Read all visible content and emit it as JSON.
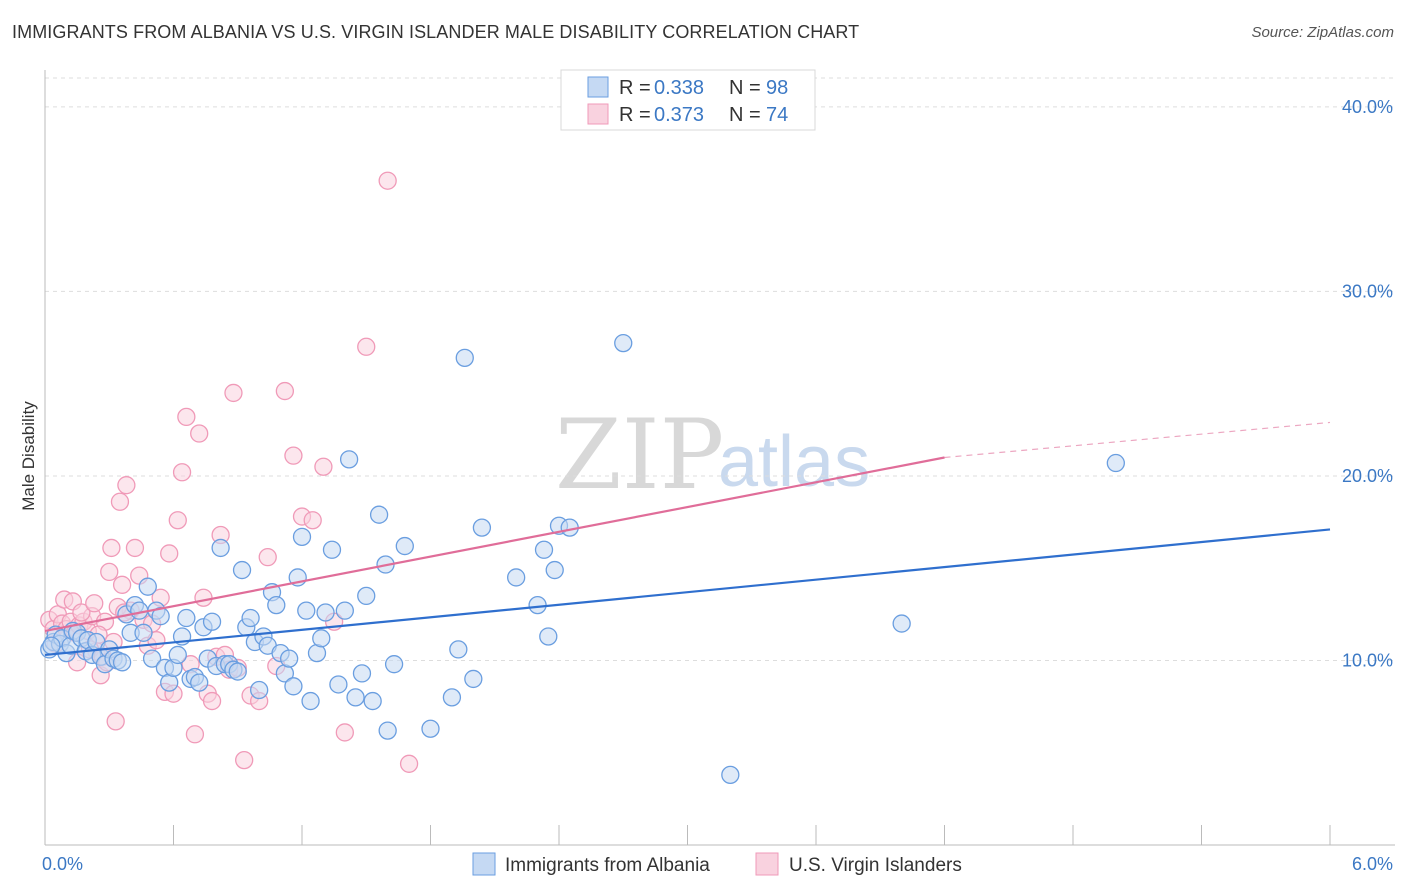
{
  "header": {
    "title": "IMMIGRANTS FROM ALBANIA VS U.S. VIRGIN ISLANDER MALE DISABILITY CORRELATION CHART",
    "source": "Source: ZipAtlas.com"
  },
  "watermark": {
    "zip": "ZIP",
    "atlas": "atlas"
  },
  "legend": {
    "items": [
      {
        "r_label": "R = ",
        "r_value": "0.338",
        "n_label": "N = ",
        "n_value": "98"
      },
      {
        "r_label": "R = ",
        "r_value": "0.373",
        "n_label": "N = ",
        "n_value": "74"
      }
    ]
  },
  "chart_data": {
    "type": "scatter",
    "ylabel": "Male Disability",
    "xlim": [
      0,
      6
    ],
    "ylim": [
      0,
      42
    ],
    "x_tick_labels": [
      {
        "value": 0,
        "label": "0.0%"
      },
      {
        "value": 6,
        "label": "6.0%"
      }
    ],
    "y_tick_labels": [
      {
        "value": 10,
        "label": "10.0%"
      },
      {
        "value": 20,
        "label": "20.0%"
      },
      {
        "value": 30,
        "label": "30.0%"
      },
      {
        "value": 40,
        "label": "40.0%"
      }
    ],
    "grid": true,
    "legend_position": "top-center",
    "series": [
      {
        "name": "Immigrants from Albania",
        "color": "#6a9ee0",
        "fill": "#c5d9f3",
        "line_color": "#2f6fce",
        "trend": {
          "x0": 0.0,
          "y0": 10.3,
          "x1": 6.0,
          "y1": 17.1
        },
        "points": [
          [
            0.02,
            10.6
          ],
          [
            0.04,
            11.0
          ],
          [
            0.05,
            11.4
          ],
          [
            0.07,
            10.9
          ],
          [
            0.08,
            11.2
          ],
          [
            0.1,
            10.4
          ],
          [
            0.12,
            10.8
          ],
          [
            0.13,
            11.6
          ],
          [
            0.15,
            11.5
          ],
          [
            0.17,
            11.2
          ],
          [
            0.19,
            10.5
          ],
          [
            0.2,
            11.1
          ],
          [
            0.22,
            10.3
          ],
          [
            0.24,
            11.0
          ],
          [
            0.26,
            10.2
          ],
          [
            0.28,
            9.8
          ],
          [
            0.3,
            10.6
          ],
          [
            0.32,
            10.1
          ],
          [
            0.34,
            10.0
          ],
          [
            0.36,
            9.9
          ],
          [
            0.38,
            12.5
          ],
          [
            0.4,
            11.5
          ],
          [
            0.42,
            13.0
          ],
          [
            0.44,
            12.7
          ],
          [
            0.46,
            11.5
          ],
          [
            0.48,
            14.0
          ],
          [
            0.5,
            10.1
          ],
          [
            0.52,
            12.7
          ],
          [
            0.54,
            12.4
          ],
          [
            0.56,
            9.6
          ],
          [
            0.58,
            8.8
          ],
          [
            0.6,
            9.6
          ],
          [
            0.62,
            10.3
          ],
          [
            0.64,
            11.3
          ],
          [
            0.66,
            12.3
          ],
          [
            0.68,
            9.0
          ],
          [
            0.7,
            9.1
          ],
          [
            0.72,
            8.8
          ],
          [
            0.74,
            11.8
          ],
          [
            0.76,
            10.1
          ],
          [
            0.78,
            12.1
          ],
          [
            0.8,
            9.7
          ],
          [
            0.82,
            16.1
          ],
          [
            0.84,
            9.8
          ],
          [
            0.86,
            9.8
          ],
          [
            0.88,
            9.5
          ],
          [
            0.9,
            9.4
          ],
          [
            0.92,
            14.9
          ],
          [
            0.94,
            11.8
          ],
          [
            0.96,
            12.3
          ],
          [
            0.98,
            11.0
          ],
          [
            1.0,
            8.4
          ],
          [
            1.02,
            11.3
          ],
          [
            1.04,
            10.8
          ],
          [
            1.06,
            13.7
          ],
          [
            1.08,
            13.0
          ],
          [
            1.1,
            10.4
          ],
          [
            1.12,
            9.3
          ],
          [
            1.14,
            10.1
          ],
          [
            1.16,
            8.6
          ],
          [
            1.18,
            14.5
          ],
          [
            1.2,
            16.7
          ],
          [
            1.22,
            12.7
          ],
          [
            1.24,
            7.8
          ],
          [
            1.27,
            10.4
          ],
          [
            1.29,
            11.2
          ],
          [
            1.31,
            12.6
          ],
          [
            1.34,
            16.0
          ],
          [
            1.37,
            8.7
          ],
          [
            1.4,
            12.7
          ],
          [
            1.42,
            20.9
          ],
          [
            1.45,
            8.0
          ],
          [
            1.48,
            9.3
          ],
          [
            1.5,
            13.5
          ],
          [
            1.53,
            7.8
          ],
          [
            1.56,
            17.9
          ],
          [
            1.59,
            15.2
          ],
          [
            1.6,
            6.2
          ],
          [
            1.63,
            9.8
          ],
          [
            1.68,
            16.2
          ],
          [
            1.8,
            6.3
          ],
          [
            1.9,
            8.0
          ],
          [
            1.93,
            10.6
          ],
          [
            1.96,
            26.4
          ],
          [
            2.0,
            9.0
          ],
          [
            2.04,
            17.2
          ],
          [
            2.2,
            14.5
          ],
          [
            2.3,
            13.0
          ],
          [
            2.33,
            16.0
          ],
          [
            2.35,
            11.3
          ],
          [
            2.38,
            14.9
          ],
          [
            2.4,
            17.3
          ],
          [
            2.45,
            17.2
          ],
          [
            2.7,
            27.2
          ],
          [
            3.2,
            3.8
          ],
          [
            4.0,
            12.0
          ],
          [
            5.0,
            20.7
          ],
          [
            0.03,
            10.8
          ]
        ]
      },
      {
        "name": "U.S. Virgin Islanders",
        "color": "#f09ab8",
        "fill": "#f9d2df",
        "line_color": "#e06d99",
        "trend": {
          "x0": 0.0,
          "y0": 11.6,
          "x1": 4.2,
          "y1": 21.0
        },
        "trend_extension": {
          "x0": 4.2,
          "y0": 21.0,
          "x1": 6.0,
          "y1": 22.9
        },
        "points": [
          [
            0.02,
            12.2
          ],
          [
            0.04,
            11.7
          ],
          [
            0.06,
            12.5
          ],
          [
            0.08,
            12.0
          ],
          [
            0.09,
            13.3
          ],
          [
            0.1,
            11.7
          ],
          [
            0.12,
            12.1
          ],
          [
            0.14,
            11.5
          ],
          [
            0.16,
            11.9
          ],
          [
            0.18,
            12.1
          ],
          [
            0.2,
            11.6
          ],
          [
            0.22,
            12.4
          ],
          [
            0.24,
            10.5
          ],
          [
            0.26,
            9.2
          ],
          [
            0.28,
            12.1
          ],
          [
            0.3,
            14.8
          ],
          [
            0.31,
            16.1
          ],
          [
            0.33,
            6.7
          ],
          [
            0.35,
            18.6
          ],
          [
            0.36,
            14.1
          ],
          [
            0.38,
            19.5
          ],
          [
            0.4,
            12.7
          ],
          [
            0.42,
            16.1
          ],
          [
            0.44,
            14.6
          ],
          [
            0.46,
            12.2
          ],
          [
            0.48,
            10.8
          ],
          [
            0.5,
            12.0
          ],
          [
            0.52,
            11.1
          ],
          [
            0.54,
            13.4
          ],
          [
            0.56,
            8.3
          ],
          [
            0.58,
            15.8
          ],
          [
            0.6,
            8.2
          ],
          [
            0.62,
            17.6
          ],
          [
            0.64,
            20.2
          ],
          [
            0.66,
            23.2
          ],
          [
            0.68,
            9.8
          ],
          [
            0.7,
            6.0
          ],
          [
            0.72,
            22.3
          ],
          [
            0.74,
            13.4
          ],
          [
            0.76,
            8.2
          ],
          [
            0.78,
            7.8
          ],
          [
            0.8,
            10.2
          ],
          [
            0.82,
            16.8
          ],
          [
            0.84,
            10.3
          ],
          [
            0.86,
            9.5
          ],
          [
            0.88,
            24.5
          ],
          [
            0.9,
            9.6
          ],
          [
            0.93,
            4.6
          ],
          [
            0.96,
            8.1
          ],
          [
            1.0,
            7.8
          ],
          [
            1.04,
            15.6
          ],
          [
            1.08,
            9.7
          ],
          [
            1.12,
            24.6
          ],
          [
            1.16,
            21.1
          ],
          [
            1.2,
            17.8
          ],
          [
            1.25,
            17.6
          ],
          [
            1.3,
            20.5
          ],
          [
            1.35,
            12.1
          ],
          [
            1.4,
            6.1
          ],
          [
            1.5,
            27.0
          ],
          [
            1.6,
            36.0
          ],
          [
            1.7,
            4.4
          ],
          [
            0.05,
            10.9
          ],
          [
            0.13,
            13.2
          ],
          [
            0.15,
            9.9
          ],
          [
            0.17,
            12.6
          ],
          [
            0.21,
            10.6
          ],
          [
            0.23,
            13.1
          ],
          [
            0.25,
            11.4
          ],
          [
            0.27,
            10.2
          ],
          [
            0.29,
            9.9
          ],
          [
            0.32,
            11.0
          ],
          [
            0.34,
            12.9
          ],
          [
            0.37,
            12.6
          ]
        ]
      }
    ]
  }
}
